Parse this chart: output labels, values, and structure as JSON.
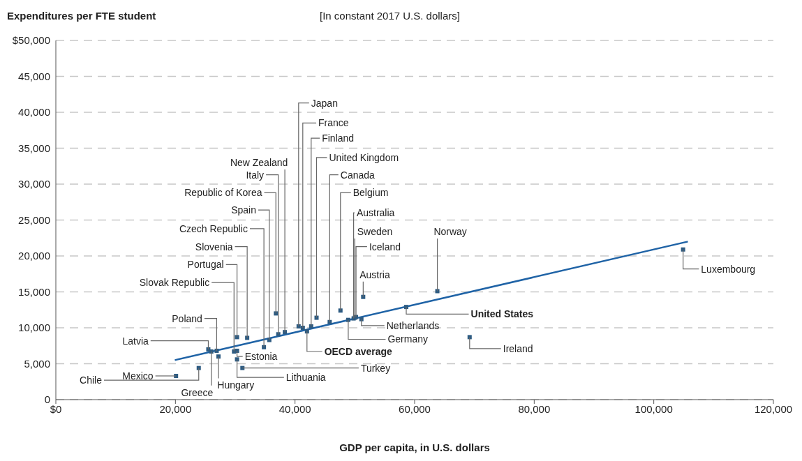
{
  "chart_data": {
    "type": "scatter",
    "title": "Expenditures per FTE student",
    "subtitle": "[In constant 2017 U.S. dollars]",
    "xlabel": "GDP per capita, in U.S. dollars",
    "xlim": [
      0,
      120000
    ],
    "xticks": [
      {
        "value": 0,
        "label": "$0"
      },
      {
        "value": 20000,
        "label": "20,000"
      },
      {
        "value": 40000,
        "label": "40,000"
      },
      {
        "value": 60000,
        "label": "60,000"
      },
      {
        "value": 80000,
        "label": "80,000"
      },
      {
        "value": 100000,
        "label": "100,000"
      },
      {
        "value": 120000,
        "label": "120,000"
      }
    ],
    "ylim": [
      0,
      50000
    ],
    "yticks": [
      {
        "value": 0,
        "label": "0"
      },
      {
        "value": 5000,
        "label": "5,000"
      },
      {
        "value": 10000,
        "label": "10,000"
      },
      {
        "value": 15000,
        "label": "15,000"
      },
      {
        "value": 20000,
        "label": "20,000"
      },
      {
        "value": 25000,
        "label": "25,000"
      },
      {
        "value": 30000,
        "label": "30,000"
      },
      {
        "value": 35000,
        "label": "35,000"
      },
      {
        "value": 40000,
        "label": "40,000"
      },
      {
        "value": 45000,
        "label": "45,000"
      },
      {
        "value": 50000,
        "label": "$50,000"
      }
    ],
    "grid": "y",
    "series": [
      {
        "marker": "square",
        "color": "#2d5b82",
        "x": [
          40600,
          41300,
          42700,
          43600,
          45800,
          47600,
          49800,
          50000,
          50200,
          51400,
          63800,
          104900,
          58600,
          51100,
          48900,
          69200,
          42000,
          31200,
          30300,
          30300,
          27200,
          26000,
          23900,
          20100,
          25500,
          26900,
          29800,
          30300,
          32000,
          34800,
          35700,
          36800,
          37200,
          38300
        ],
        "values": [
          10200,
          10000,
          10200,
          11400,
          10800,
          12400,
          11300,
          11400,
          11500,
          14300,
          15100,
          20900,
          12900,
          11200,
          11100,
          8700,
          9500,
          4400,
          5600,
          6800,
          6000,
          6700,
          4400,
          3300,
          7000,
          6800,
          6700,
          8700,
          8600,
          7300,
          8300,
          12000,
          9100,
          9400
        ]
      },
      {
        "type": "line",
        "marker": "none",
        "color": "#1f63a6",
        "line_style": "solid",
        "x": [
          19900,
          105700
        ],
        "values": [
          5500,
          22000
        ]
      }
    ],
    "annotations": [
      {
        "text": "Japan",
        "x": 40600,
        "y": 10200
      },
      {
        "text": "France",
        "x": 41300,
        "y": 10000
      },
      {
        "text": "Finland",
        "x": 42700,
        "y": 10200
      },
      {
        "text": "United Kingdom",
        "x": 43600,
        "y": 11400
      },
      {
        "text": "Canada",
        "x": 45800,
        "y": 10800
      },
      {
        "text": "Belgium",
        "x": 47600,
        "y": 12400
      },
      {
        "text": "Australia",
        "x": 49800,
        "y": 11300
      },
      {
        "text": "Sweden",
        "x": 50000,
        "y": 11400
      },
      {
        "text": "Iceland",
        "x": 50200,
        "y": 11500
      },
      {
        "text": "Austria",
        "x": 51400,
        "y": 14300
      },
      {
        "text": "Norway",
        "x": 63800,
        "y": 15100
      },
      {
        "text": "Luxembourg",
        "x": 104900,
        "y": 20900
      },
      {
        "text": "United States",
        "x": 58600,
        "y": 12900
      },
      {
        "text": "Netherlands",
        "x": 51100,
        "y": 11200
      },
      {
        "text": "Germany",
        "x": 48900,
        "y": 11100
      },
      {
        "text": "Ireland",
        "x": 69200,
        "y": 8700
      },
      {
        "text": "OECD average",
        "x": 42000,
        "y": 9500
      },
      {
        "text": "Turkey",
        "x": 31200,
        "y": 4400
      },
      {
        "text": "Lithuania",
        "x": 30300,
        "y": 5600
      },
      {
        "text": "Estonia",
        "x": 30300,
        "y": 6800
      },
      {
        "text": "Hungary",
        "x": 27200,
        "y": 6000
      },
      {
        "text": "Greece",
        "x": 26000,
        "y": 6700
      },
      {
        "text": "Chile",
        "x": 23900,
        "y": 4400
      },
      {
        "text": "Mexico",
        "x": 20100,
        "y": 3300
      },
      {
        "text": "Latvia",
        "x": 25500,
        "y": 7000
      },
      {
        "text": "Poland",
        "x": 26900,
        "y": 6800
      },
      {
        "text": "Slovak Republic",
        "x": 29800,
        "y": 6700
      },
      {
        "text": "Portugal",
        "x": 30300,
        "y": 8700
      },
      {
        "text": "Slovenia",
        "x": 32000,
        "y": 8600
      },
      {
        "text": "Czech Republic",
        "x": 34800,
        "y": 7300
      },
      {
        "text": "Spain",
        "x": 35700,
        "y": 8300
      },
      {
        "text": "Republic of Korea",
        "x": 36800,
        "y": 12000
      },
      {
        "text": "Italy",
        "x": 37200,
        "y": 9100
      },
      {
        "text": "New Zealand",
        "x": 38300,
        "y": 9400
      }
    ]
  }
}
